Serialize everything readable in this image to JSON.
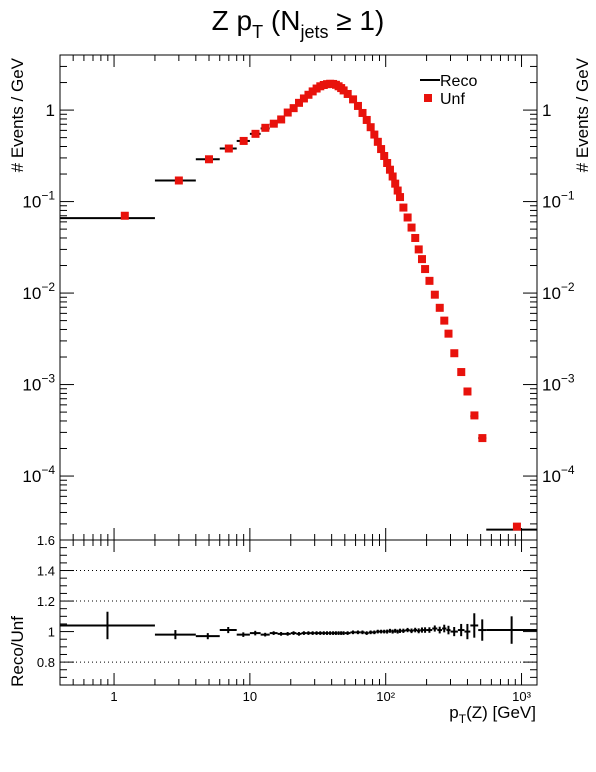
{
  "chart_data": [
    {
      "type": "scatter",
      "title": "Z p_T (N_jets ≥ 1)",
      "title_parts": {
        "main": "Z p",
        "sub1": "T",
        "open": " (N",
        "sub2": "jets",
        "rest": " ≥ 1)"
      },
      "ylabel": "# Events / GeV",
      "ylabel_right": "# Events / GeV",
      "xlim": [
        0.4,
        1300
      ],
      "ylim": [
        2e-05,
        4
      ],
      "x_scale": "log",
      "y_scale": "log",
      "y_tick_labels": [
        {
          "value": 1,
          "base": "1",
          "exp": ""
        },
        {
          "value": 0.1,
          "base": "10",
          "exp": "−1"
        },
        {
          "value": 0.01,
          "base": "10",
          "exp": "−2"
        },
        {
          "value": 0.001,
          "base": "10",
          "exp": "−3"
        },
        {
          "value": 0.0001,
          "base": "10",
          "exp": "−4"
        }
      ],
      "legend": {
        "position": "top-right",
        "entries": [
          {
            "label": "Reco",
            "marker": "line",
            "color": "#000000"
          },
          {
            "label": "Unf",
            "marker": "square",
            "color": "#e8120c"
          }
        ]
      },
      "series": [
        {
          "name": "Reco",
          "style": "line-with-errors",
          "color": "#000000",
          "points": [
            [
              0.4,
              2.0,
              0.066
            ],
            [
              2.0,
              4.0,
              0.17
            ],
            [
              4.0,
              6.0,
              0.29
            ],
            [
              6.0,
              8.0,
              0.38
            ],
            [
              8.0,
              10.0,
              0.46
            ],
            [
              10.0,
              12.0,
              0.55
            ],
            [
              12.0,
              14.0,
              0.63
            ],
            [
              14.0,
              16.0,
              0.7
            ],
            [
              16.0,
              18.0,
              0.78
            ],
            [
              18.0,
              20.0,
              0.92
            ],
            [
              20.0,
              22.0,
              1.04
            ],
            [
              22.0,
              24.0,
              1.18
            ],
            [
              24.0,
              26.0,
              1.32
            ],
            [
              26.0,
              28.0,
              1.45
            ],
            [
              28.0,
              30.0,
              1.58
            ],
            [
              30.0,
              32.0,
              1.7
            ],
            [
              32.0,
              34.0,
              1.8
            ],
            [
              34.0,
              36.0,
              1.86
            ],
            [
              36.0,
              38.0,
              1.9
            ],
            [
              38.0,
              40.0,
              1.92
            ],
            [
              40.0,
              42.0,
              1.91
            ],
            [
              42.0,
              44.0,
              1.87
            ],
            [
              44.0,
              46.0,
              1.8
            ],
            [
              46.0,
              48.0,
              1.72
            ],
            [
              48.0,
              50.0,
              1.62
            ],
            [
              50.0,
              55.0,
              1.48
            ],
            [
              55.0,
              60.0,
              1.3
            ],
            [
              60.0,
              65.0,
              1.1
            ],
            [
              65.0,
              70.0,
              0.92
            ],
            [
              70.0,
              75.0,
              0.77
            ],
            [
              75.0,
              80.0,
              0.64
            ],
            [
              80.0,
              85.0,
              0.53
            ],
            [
              85.0,
              90.0,
              0.44
            ],
            [
              90.0,
              95.0,
              0.37
            ],
            [
              95.0,
              100.0,
              0.31
            ],
            [
              100.0,
              105.0,
              0.26
            ],
            [
              105.0,
              110.0,
              0.22
            ],
            [
              110.0,
              115.0,
              0.185
            ],
            [
              115.0,
              120.0,
              0.155
            ],
            [
              120.0,
              125.0,
              0.13
            ],
            [
              125.0,
              130.0,
              0.11
            ],
            [
              130.0,
              140.0,
              0.085
            ],
            [
              140.0,
              150.0,
              0.066
            ],
            [
              150.0,
              160.0,
              0.051
            ],
            [
              160.0,
              170.0,
              0.039
            ],
            [
              170.0,
              180.0,
              0.03
            ],
            [
              180.0,
              190.0,
              0.023
            ],
            [
              190.0,
              200.0,
              0.018
            ],
            [
              200.0,
              220.0,
              0.0135
            ],
            [
              220.0,
              240.0,
              0.0095
            ],
            [
              240.0,
              260.0,
              0.0068
            ],
            [
              260.0,
              280.0,
              0.0049
            ],
            [
              280.0,
              300.0,
              0.0035
            ],
            [
              300.0,
              340.0,
              0.0022
            ],
            [
              340.0,
              380.0,
              0.00135
            ],
            [
              380.0,
              420.0,
              0.00082
            ],
            [
              420.0,
              480.0,
              0.00045
            ],
            [
              480.0,
              550.0,
              0.00026
            ],
            [
              550.0,
              1300.0,
              2.6e-05
            ]
          ]
        },
        {
          "name": "Unf",
          "style": "square-marker",
          "color": "#e8120c",
          "points": [
            [
              1.2,
              0.07
            ],
            [
              3.0,
              0.17
            ],
            [
              5.0,
              0.29
            ],
            [
              7.0,
              0.38
            ],
            [
              9.0,
              0.46
            ],
            [
              11.0,
              0.55
            ],
            [
              13.0,
              0.64
            ],
            [
              15.0,
              0.71
            ],
            [
              17.0,
              0.79
            ],
            [
              19.0,
              0.94
            ],
            [
              21.0,
              1.05
            ],
            [
              23.0,
              1.2
            ],
            [
              25.0,
              1.34
            ],
            [
              27.0,
              1.47
            ],
            [
              29.0,
              1.6
            ],
            [
              31.0,
              1.72
            ],
            [
              33.0,
              1.82
            ],
            [
              35.0,
              1.88
            ],
            [
              37.0,
              1.92
            ],
            [
              39.0,
              1.94
            ],
            [
              41.0,
              1.93
            ],
            [
              43.0,
              1.89
            ],
            [
              45.0,
              1.82
            ],
            [
              47.0,
              1.74
            ],
            [
              49.0,
              1.64
            ],
            [
              52.5,
              1.5
            ],
            [
              57.5,
              1.31
            ],
            [
              62.5,
              1.11
            ],
            [
              67.5,
              0.93
            ],
            [
              72.5,
              0.78
            ],
            [
              77.5,
              0.65
            ],
            [
              82.5,
              0.54
            ],
            [
              87.5,
              0.45
            ],
            [
              92.5,
              0.375
            ],
            [
              97.5,
              0.315
            ],
            [
              102.5,
              0.264
            ],
            [
              107.5,
              0.223
            ],
            [
              112.5,
              0.188
            ],
            [
              117.5,
              0.157
            ],
            [
              122.5,
              0.132
            ],
            [
              127.5,
              0.112
            ],
            [
              135.0,
              0.086
            ],
            [
              145.0,
              0.067
            ],
            [
              155.0,
              0.052
            ],
            [
              165.0,
              0.04
            ],
            [
              175.0,
              0.03
            ],
            [
              185.0,
              0.0235
            ],
            [
              195.0,
              0.0183
            ],
            [
              210.0,
              0.0136
            ],
            [
              230.0,
              0.0096
            ],
            [
              250.0,
              0.0069
            ],
            [
              270.0,
              0.005
            ],
            [
              290.0,
              0.0036
            ],
            [
              320.0,
              0.0022
            ],
            [
              360.0,
              0.00137
            ],
            [
              400.0,
              0.00084
            ],
            [
              450.0,
              0.00046
            ],
            [
              515.0,
              0.00026
            ],
            [
              925.0,
              2.8e-05
            ]
          ]
        }
      ]
    },
    {
      "type": "scatter",
      "xlabel": "p_T(Z) [GeV]",
      "xlabel_parts": {
        "main": "p",
        "sub": "T",
        "rest": "(Z) [GeV]"
      },
      "ylabel": "Reco/Unf",
      "xlim": [
        0.4,
        1300
      ],
      "ylim": [
        0.65,
        1.6
      ],
      "x_scale": "log",
      "x_tick_labels": [
        "1",
        "10",
        "10²",
        "10³"
      ],
      "y_tick_labels": [
        "0.8",
        "1",
        "1.2",
        "1.4",
        "1.6"
      ],
      "reference_lines": [
        0.8,
        1.2,
        1.4
      ],
      "grid": "dotted",
      "series": [
        {
          "name": "Reco/Unf",
          "style": "errorbar",
          "color": "#000000",
          "points": [
            [
              0.4,
              2.0,
              1.04,
              0.09
            ],
            [
              2.0,
              4.0,
              0.98,
              0.03
            ],
            [
              4.0,
              6.0,
              0.97,
              0.02
            ],
            [
              6.0,
              8.0,
              1.01,
              0.02
            ],
            [
              8.0,
              10.0,
              0.98,
              0.015
            ],
            [
              10.0,
              12.0,
              0.99,
              0.015
            ],
            [
              12.0,
              14.0,
              0.98,
              0.012
            ],
            [
              14.0,
              16.0,
              0.99,
              0.012
            ],
            [
              16.0,
              18.0,
              0.985,
              0.012
            ],
            [
              18.0,
              20.0,
              0.985,
              0.012
            ],
            [
              20.0,
              22.0,
              0.99,
              0.012
            ],
            [
              22.0,
              24.0,
              0.985,
              0.012
            ],
            [
              24.0,
              26.0,
              0.99,
              0.012
            ],
            [
              26.0,
              28.0,
              0.99,
              0.012
            ],
            [
              28.0,
              30.0,
              0.99,
              0.012
            ],
            [
              30.0,
              32.0,
              0.99,
              0.012
            ],
            [
              32.0,
              34.0,
              0.99,
              0.012
            ],
            [
              34.0,
              36.0,
              0.99,
              0.012
            ],
            [
              36.0,
              38.0,
              0.99,
              0.012
            ],
            [
              38.0,
              40.0,
              0.99,
              0.012
            ],
            [
              40.0,
              42.0,
              0.99,
              0.012
            ],
            [
              42.0,
              44.0,
              0.99,
              0.012
            ],
            [
              44.0,
              46.0,
              0.99,
              0.012
            ],
            [
              46.0,
              48.0,
              0.99,
              0.012
            ],
            [
              48.0,
              50.0,
              0.99,
              0.012
            ],
            [
              50.0,
              55.0,
              0.99,
              0.012
            ],
            [
              55.0,
              60.0,
              0.995,
              0.012
            ],
            [
              60.0,
              65.0,
              0.995,
              0.012
            ],
            [
              65.0,
              70.0,
              0.995,
              0.012
            ],
            [
              70.0,
              75.0,
              0.99,
              0.012
            ],
            [
              75.0,
              80.0,
              0.995,
              0.012
            ],
            [
              80.0,
              85.0,
              0.995,
              0.012
            ],
            [
              85.0,
              90.0,
              1.0,
              0.012
            ],
            [
              90.0,
              95.0,
              1.0,
              0.012
            ],
            [
              95.0,
              100.0,
              1.0,
              0.012
            ],
            [
              100.0,
              105.0,
              1.0,
              0.013
            ],
            [
              105.0,
              110.0,
              1.005,
              0.013
            ],
            [
              110.0,
              115.0,
              1.0,
              0.013
            ],
            [
              115.0,
              120.0,
              1.005,
              0.013
            ],
            [
              120.0,
              125.0,
              1.0,
              0.013
            ],
            [
              125.0,
              130.0,
              1.005,
              0.014
            ],
            [
              130.0,
              140.0,
              1.005,
              0.014
            ],
            [
              140.0,
              150.0,
              1.01,
              0.014
            ],
            [
              150.0,
              160.0,
              1.005,
              0.015
            ],
            [
              160.0,
              170.0,
              1.01,
              0.015
            ],
            [
              170.0,
              180.0,
              1.005,
              0.016
            ],
            [
              180.0,
              190.0,
              1.01,
              0.017
            ],
            [
              190.0,
              200.0,
              1.01,
              0.018
            ],
            [
              200.0,
              220.0,
              1.01,
              0.018
            ],
            [
              220.0,
              240.0,
              1.02,
              0.02
            ],
            [
              240.0,
              260.0,
              1.01,
              0.022
            ],
            [
              260.0,
              280.0,
              1.02,
              0.025
            ],
            [
              280.0,
              300.0,
              1.01,
              0.028
            ],
            [
              300.0,
              340.0,
              1.0,
              0.03
            ],
            [
              340.0,
              380.0,
              1.01,
              0.04
            ],
            [
              380.0,
              420.0,
              1.0,
              0.05
            ],
            [
              420.0,
              480.0,
              1.04,
              0.08
            ],
            [
              480.0,
              550.0,
              1.01,
              0.07
            ],
            [
              550.0,
              1300.0,
              1.01,
              0.09
            ]
          ]
        }
      ]
    }
  ]
}
